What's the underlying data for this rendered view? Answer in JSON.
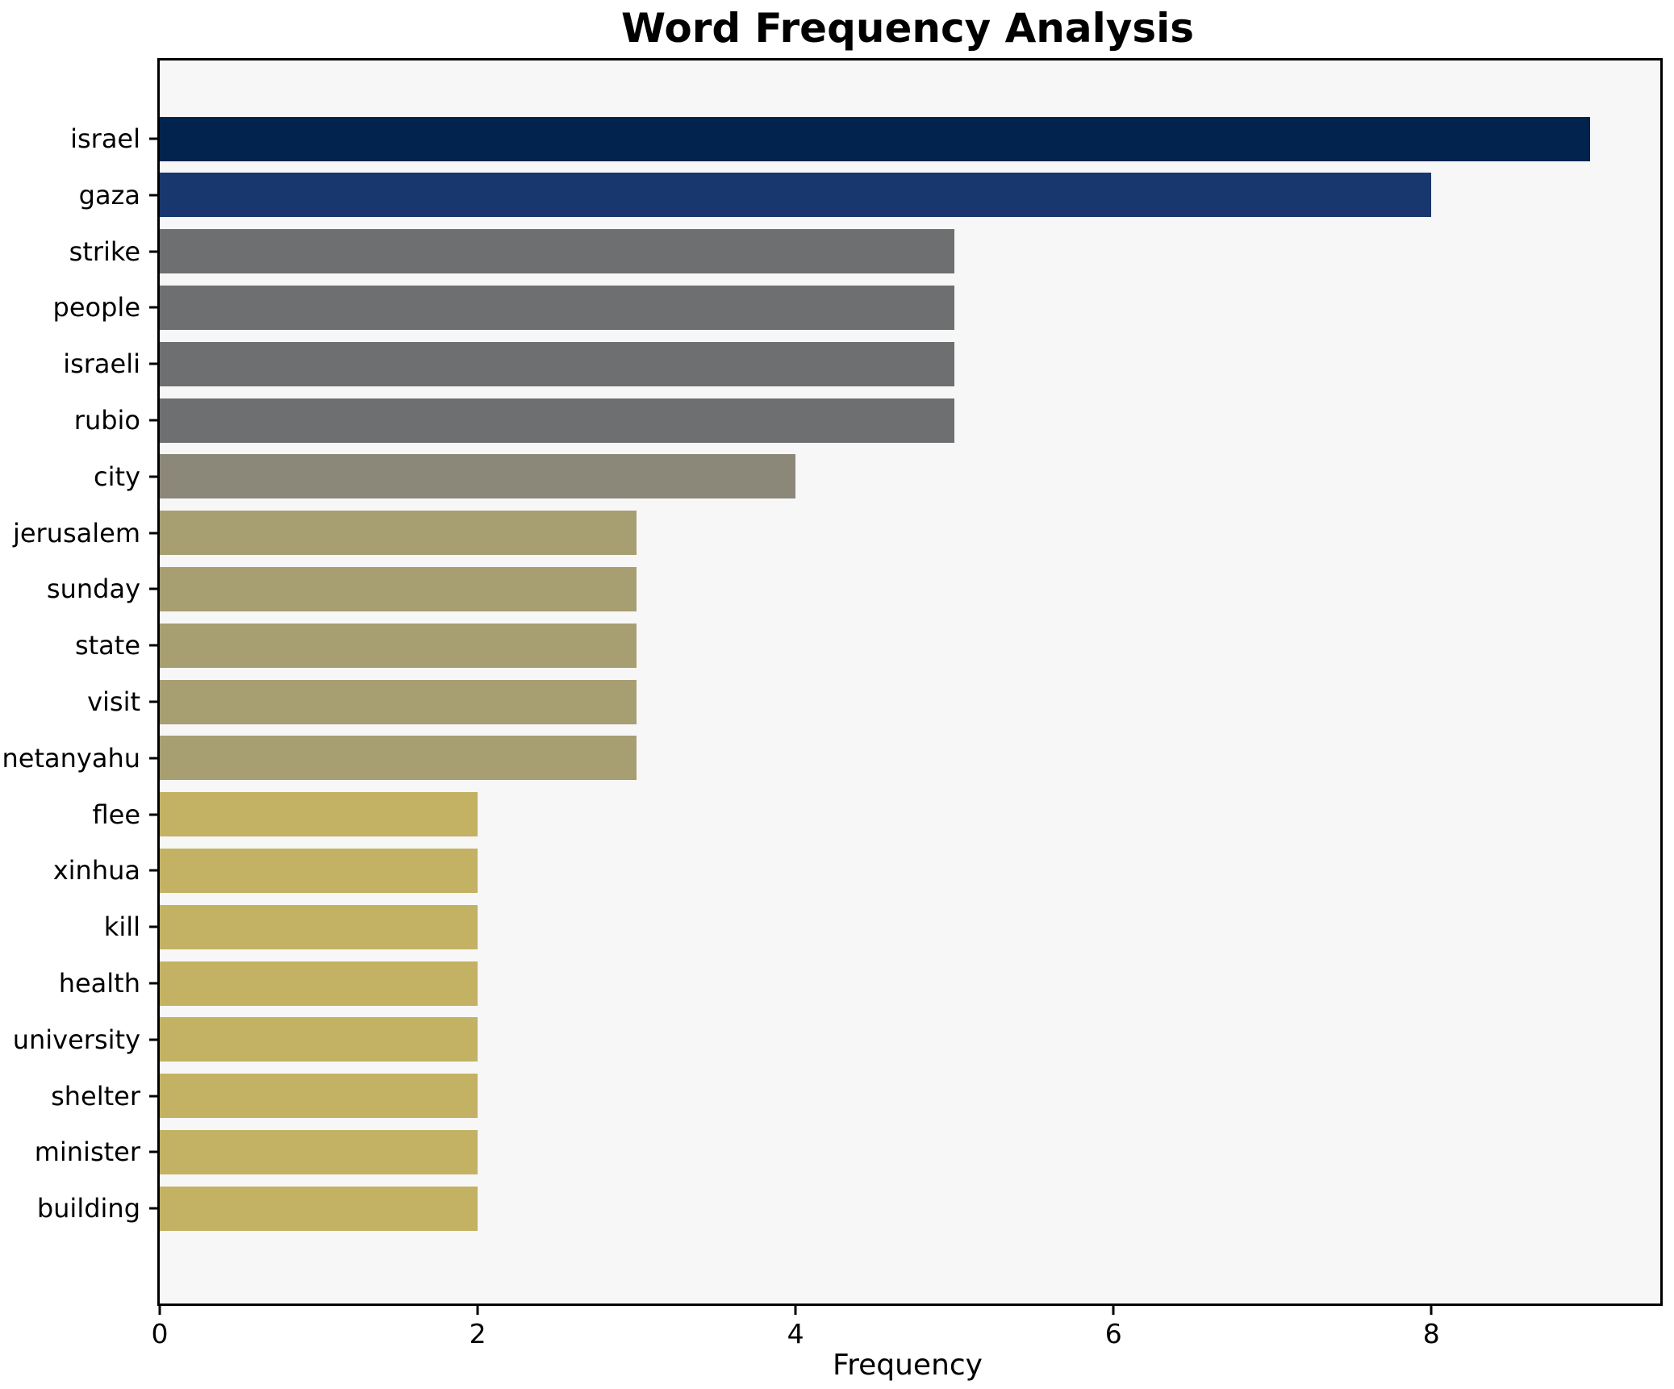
{
  "figure": {
    "background_color": "#ffffff",
    "plot_background_color": "#f7f7f7",
    "spine_color": "#000000",
    "text_color": "#000000"
  },
  "chart_data": {
    "type": "bar",
    "orientation": "horizontal",
    "title": "Word Frequency Analysis",
    "xlabel": "Frequency",
    "ylabel": "",
    "categories": [
      "israel",
      "gaza",
      "strike",
      "people",
      "israeli",
      "rubio",
      "city",
      "jerusalem",
      "sunday",
      "state",
      "visit",
      "netanyahu",
      "flee",
      "xinhua",
      "kill",
      "health",
      "university",
      "shelter",
      "minister",
      "building"
    ],
    "values": [
      9,
      8,
      5,
      5,
      5,
      5,
      4,
      3,
      3,
      3,
      3,
      3,
      2,
      2,
      2,
      2,
      2,
      2,
      2,
      2
    ],
    "bar_colors": [
      "#02234e",
      "#18376e",
      "#6e6f70",
      "#6e6f70",
      "#6e6f70",
      "#6e6f70",
      "#8b8779",
      "#a79e72",
      "#a79e72",
      "#a79e72",
      "#a79e72",
      "#a79e72",
      "#c3b264",
      "#c3b264",
      "#c3b264",
      "#c3b264",
      "#c3b264",
      "#c3b264",
      "#c3b264",
      "#c3b264"
    ],
    "xticks": [
      0,
      2,
      4,
      6,
      8
    ],
    "xlim": [
      0,
      9.44
    ],
    "grid": false,
    "legend": null
  }
}
